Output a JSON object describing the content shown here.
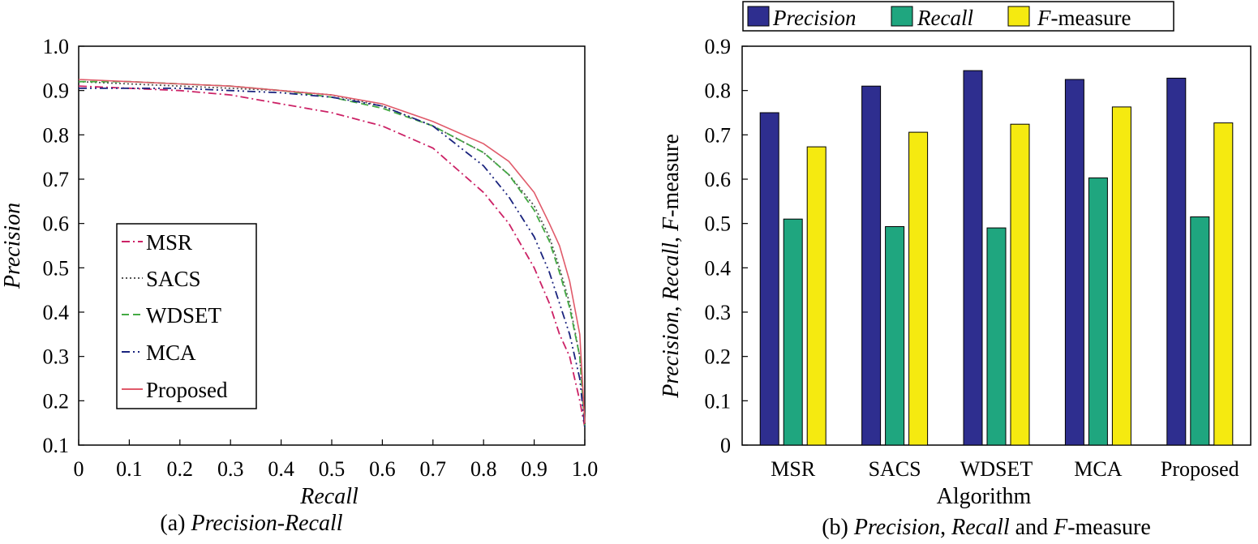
{
  "chart_data": [
    {
      "type": "line",
      "caption": {
        "prefix": "(a) ",
        "title": "Precision-Recall"
      },
      "xlabel": "Recall",
      "ylabel": "Precision",
      "xlim": [
        0,
        1.0
      ],
      "ylim": [
        0.1,
        1.0
      ],
      "x_ticks": [
        "0",
        "0.1",
        "0.2",
        "0.3",
        "0.4",
        "0.5",
        "0.6",
        "0.7",
        "0.8",
        "0.9",
        "1.0"
      ],
      "y_ticks": [
        "0.1",
        "0.2",
        "0.3",
        "0.4",
        "0.5",
        "0.6",
        "0.7",
        "0.8",
        "0.9",
        "1.0"
      ],
      "legend_position": "lower-left",
      "series": [
        {
          "name": "MSR",
          "color": "#cc2266",
          "style": "dashdot",
          "points": [
            [
              0,
              0.91
            ],
            [
              0.1,
              0.905
            ],
            [
              0.2,
              0.9
            ],
            [
              0.3,
              0.89
            ],
            [
              0.4,
              0.87
            ],
            [
              0.5,
              0.85
            ],
            [
              0.6,
              0.82
            ],
            [
              0.7,
              0.77
            ],
            [
              0.8,
              0.67
            ],
            [
              0.85,
              0.6
            ],
            [
              0.9,
              0.5
            ],
            [
              0.93,
              0.42
            ],
            [
              0.95,
              0.35
            ],
            [
              0.97,
              0.3
            ],
            [
              0.98,
              0.25
            ],
            [
              0.99,
              0.2
            ],
            [
              1.0,
              0.14
            ]
          ]
        },
        {
          "name": "SACS",
          "color": "#555555",
          "style": "dotted",
          "points": [
            [
              0,
              0.92
            ],
            [
              0.1,
              0.915
            ],
            [
              0.2,
              0.91
            ],
            [
              0.3,
              0.905
            ],
            [
              0.4,
              0.9
            ],
            [
              0.5,
              0.89
            ],
            [
              0.6,
              0.865
            ],
            [
              0.7,
              0.82
            ],
            [
              0.8,
              0.76
            ],
            [
              0.85,
              0.71
            ],
            [
              0.9,
              0.64
            ],
            [
              0.93,
              0.57
            ],
            [
              0.95,
              0.5
            ],
            [
              0.97,
              0.42
            ],
            [
              0.99,
              0.3
            ],
            [
              1.0,
              0.14
            ]
          ]
        },
        {
          "name": "WDSET",
          "color": "#44aa44",
          "style": "dashed",
          "points": [
            [
              0,
              0.92
            ],
            [
              0.1,
              0.92
            ],
            [
              0.2,
              0.915
            ],
            [
              0.3,
              0.91
            ],
            [
              0.4,
              0.9
            ],
            [
              0.5,
              0.885
            ],
            [
              0.6,
              0.86
            ],
            [
              0.7,
              0.82
            ],
            [
              0.8,
              0.76
            ],
            [
              0.85,
              0.71
            ],
            [
              0.9,
              0.63
            ],
            [
              0.93,
              0.56
            ],
            [
              0.95,
              0.49
            ],
            [
              0.97,
              0.41
            ],
            [
              0.99,
              0.3
            ],
            [
              1.0,
              0.14
            ]
          ]
        },
        {
          "name": "MCA",
          "color": "#1a237e",
          "style": "dashdotdot",
          "points": [
            [
              0,
              0.905
            ],
            [
              0.1,
              0.905
            ],
            [
              0.2,
              0.905
            ],
            [
              0.3,
              0.9
            ],
            [
              0.4,
              0.895
            ],
            [
              0.5,
              0.885
            ],
            [
              0.6,
              0.865
            ],
            [
              0.7,
              0.82
            ],
            [
              0.8,
              0.73
            ],
            [
              0.85,
              0.66
            ],
            [
              0.9,
              0.57
            ],
            [
              0.93,
              0.49
            ],
            [
              0.95,
              0.42
            ],
            [
              0.97,
              0.35
            ],
            [
              0.99,
              0.25
            ],
            [
              1.0,
              0.14
            ]
          ]
        },
        {
          "name": "Proposed",
          "color": "#e05a6a",
          "style": "solid",
          "points": [
            [
              0,
              0.925
            ],
            [
              0.1,
              0.92
            ],
            [
              0.2,
              0.915
            ],
            [
              0.3,
              0.91
            ],
            [
              0.4,
              0.9
            ],
            [
              0.5,
              0.89
            ],
            [
              0.6,
              0.87
            ],
            [
              0.7,
              0.83
            ],
            [
              0.8,
              0.78
            ],
            [
              0.85,
              0.74
            ],
            [
              0.9,
              0.67
            ],
            [
              0.93,
              0.6
            ],
            [
              0.95,
              0.55
            ],
            [
              0.97,
              0.47
            ],
            [
              0.99,
              0.35
            ],
            [
              1.0,
              0.15
            ]
          ]
        }
      ]
    },
    {
      "type": "bar",
      "caption": {
        "prefix": "(b) ",
        "precision": "Precision",
        "sep1": ", ",
        "recall": "Recall",
        "sep2": " and ",
        "f": "F",
        "measure": "-measure"
      },
      "xlabel": "Algorithm",
      "ylabel": {
        "precision": "Precision",
        "sep": ", ",
        "recall": "Recall",
        "f": "F",
        "measure": "-measure"
      },
      "ylim": [
        0,
        0.9
      ],
      "y_ticks": [
        "0",
        "0.1",
        "0.2",
        "0.3",
        "0.4",
        "0.5",
        "0.6",
        "0.7",
        "0.8",
        "0.9"
      ],
      "categories": [
        "MSR",
        "SACS",
        "WDSET",
        "MCA",
        "Proposed"
      ],
      "legend_position": "top",
      "legend": [
        {
          "name": "Precision",
          "italic": true
        },
        {
          "name": "Recall",
          "italic": true
        },
        {
          "name_italic": "F",
          "name_rest": "-measure"
        }
      ],
      "series": [
        {
          "name": "Precision",
          "color": "#2e2e8f",
          "values": [
            0.75,
            0.81,
            0.845,
            0.825,
            0.828
          ]
        },
        {
          "name": "Recall",
          "color": "#1fa67f",
          "values": [
            0.51,
            0.493,
            0.49,
            0.603,
            0.515
          ]
        },
        {
          "name": "F-measure",
          "color": "#f5ea10",
          "values": [
            0.673,
            0.706,
            0.724,
            0.763,
            0.727
          ]
        }
      ]
    }
  ]
}
